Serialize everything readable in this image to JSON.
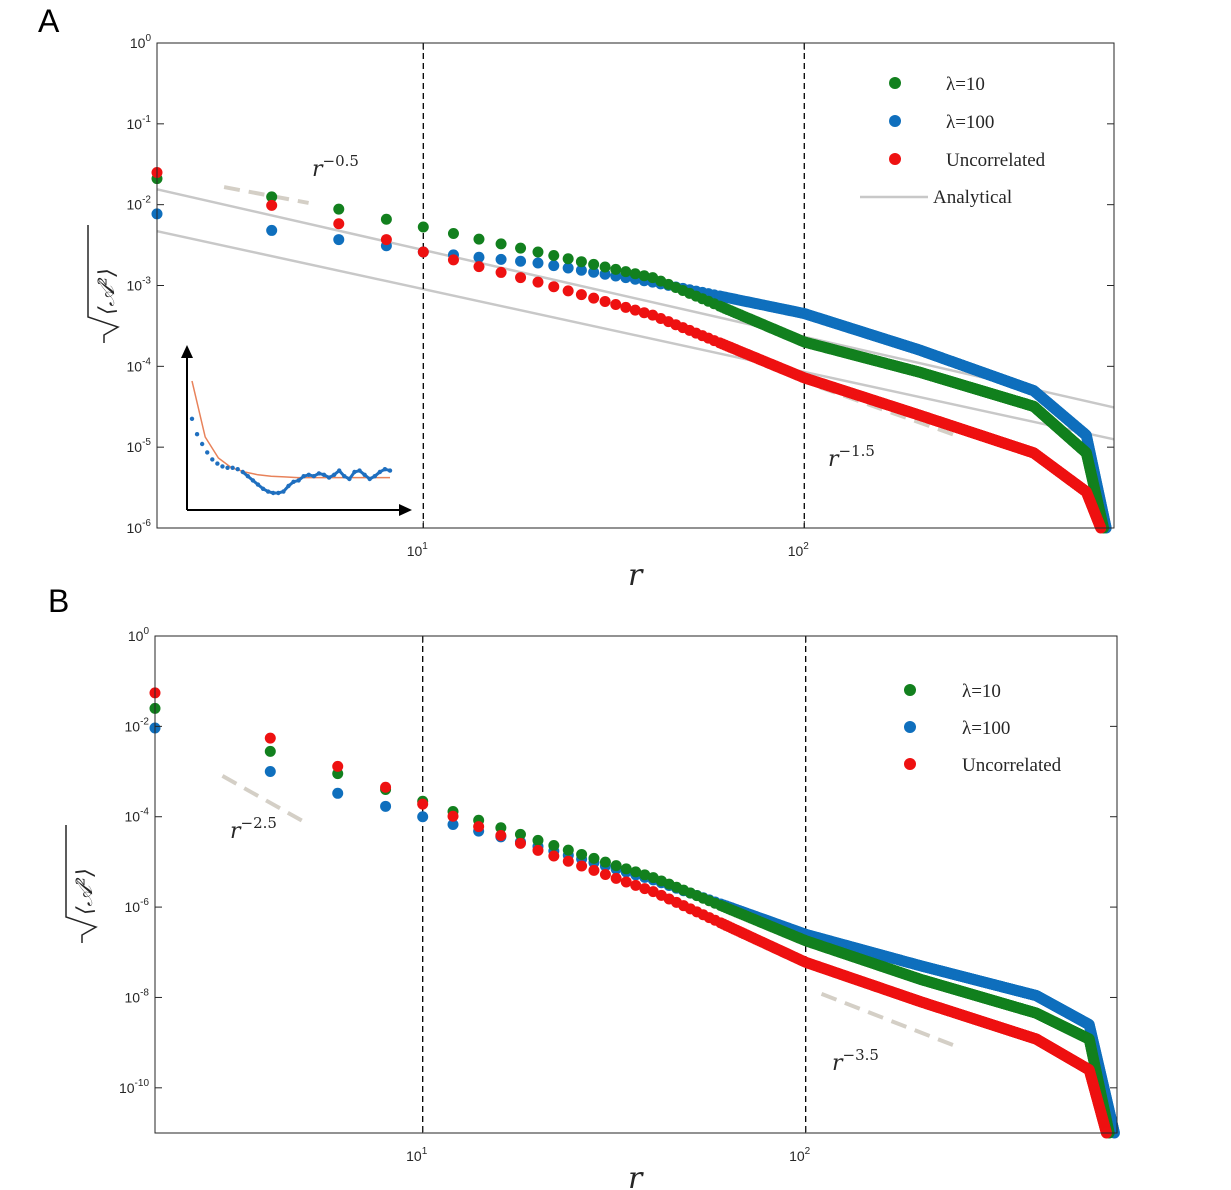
{
  "colors": {
    "lambda10": "#12801e",
    "lambda100": "#0f6fbd",
    "uncorrelated": "#ee1111",
    "analytical": "#c8c8c8",
    "slope_guide": "#d4cfc6",
    "inset_data": "#1f6fbf",
    "inset_fit": "#e8825a"
  },
  "chart_data": [
    {
      "panel": "A",
      "type": "scatter",
      "xscale": "log",
      "yscale": "log",
      "xlim": [
        2,
        650
      ],
      "ylim": [
        1e-06,
        1
      ],
      "xlabel": "r",
      "ylabel": "sqrt(<A^2>)",
      "xticks": [
        {
          "base": "10",
          "exp": "1",
          "value": 10
        },
        {
          "base": "10",
          "exp": "2",
          "value": 100
        }
      ],
      "yticks": [
        {
          "base": "10",
          "exp": "0",
          "value": 1
        },
        {
          "base": "10",
          "exp": "-1",
          "value": 0.1
        },
        {
          "base": "10",
          "exp": "-2",
          "value": 0.01
        },
        {
          "base": "10",
          "exp": "-3",
          "value": 0.001
        },
        {
          "base": "10",
          "exp": "-4",
          "value": 0.0001
        },
        {
          "base": "10",
          "exp": "-5",
          "value": 1e-05
        },
        {
          "base": "10",
          "exp": "-6",
          "value": 1e-06
        }
      ],
      "vlines": [
        10,
        100
      ],
      "legend_position": "top-right",
      "series": [
        {
          "name": "λ=10",
          "color_key": "lambda10",
          "anchors": [
            [
              2,
              0.021
            ],
            [
              4,
              0.0125
            ],
            [
              6,
              0.0088
            ],
            [
              8,
              0.0066
            ],
            [
              10,
              0.0053
            ],
            [
              20,
              0.0026
            ],
            [
              40,
              0.00125
            ],
            [
              100,
              0.0002
            ],
            [
              200,
              8.5e-05
            ],
            [
              400,
              3.2e-05
            ],
            [
              550,
              8.5e-06
            ],
            [
              610,
              1e-06
            ]
          ]
        },
        {
          "name": "λ=100",
          "color_key": "lambda100",
          "anchors": [
            [
              2,
              0.0077
            ],
            [
              4,
              0.0048
            ],
            [
              6,
              0.0037
            ],
            [
              8,
              0.0031
            ],
            [
              10,
              0.0026
            ],
            [
              20,
              0.0019
            ],
            [
              40,
              0.0011
            ],
            [
              100,
              0.00045
            ],
            [
              200,
              0.00016
            ],
            [
              400,
              5e-05
            ],
            [
              550,
              1.4e-05
            ],
            [
              620,
              1e-06
            ]
          ]
        },
        {
          "name": "Uncorrelated",
          "color_key": "uncorrelated",
          "anchors": [
            [
              2,
              0.025
            ],
            [
              4,
              0.0098
            ],
            [
              6,
              0.0058
            ],
            [
              8,
              0.0037
            ],
            [
              10,
              0.0026
            ],
            [
              20,
              0.0011
            ],
            [
              40,
              0.00043
            ],
            [
              100,
              7.2e-05
            ],
            [
              200,
              2.5e-05
            ],
            [
              400,
              8.5e-06
            ],
            [
              550,
              2.8e-06
            ],
            [
              600,
              1e-06
            ]
          ]
        },
        {
          "name": "Analytical",
          "color_key": "analytical",
          "style": "line",
          "lines": [
            [
              [
                2,
                0.0155
              ],
              [
                650,
                3.1e-05
              ]
            ],
            [
              [
                2,
                0.0047
              ],
              [
                650,
                1.25e-05
              ]
            ]
          ]
        }
      ],
      "slope_labels": [
        {
          "base": "r",
          "exp": "−0.5",
          "guide": [
            [
              3,
              0.0165
            ],
            [
              5,
              0.0105
            ]
          ]
        },
        {
          "base": "r",
          "exp": "−1.5",
          "guide": [
            [
              110,
              5.5e-05
            ],
            [
              250,
              1.4e-05
            ]
          ]
        }
      ],
      "inset": {
        "data": [
          0.58,
          0.47,
          0.4,
          0.34,
          0.29,
          0.26,
          0.24,
          0.23,
          0.23,
          0.22,
          0.2,
          0.17,
          0.14,
          0.11,
          0.08,
          0.06,
          0.05,
          0.05,
          0.06,
          0.1,
          0.13,
          0.14,
          0.17,
          0.18,
          0.17,
          0.19,
          0.18,
          0.16,
          0.18,
          0.21,
          0.17,
          0.15,
          0.2,
          0.21,
          0.18,
          0.15,
          0.17,
          0.2,
          0.22,
          0.21
        ],
        "fit": [
          0.85,
          0.45,
          0.3,
          0.23,
          0.2,
          0.18,
          0.17,
          0.165,
          0.16,
          0.16,
          0.16,
          0.16,
          0.16,
          0.16,
          0.16,
          0.16
        ]
      }
    },
    {
      "panel": "B",
      "type": "scatter",
      "xscale": "log",
      "yscale": "log",
      "xlim": [
        2,
        650
      ],
      "ylim": [
        1e-11,
        1
      ],
      "xlabel": "r",
      "ylabel": "sqrt(<A^2>)",
      "xticks": [
        {
          "base": "10",
          "exp": "1",
          "value": 10
        },
        {
          "base": "10",
          "exp": "2",
          "value": 100
        }
      ],
      "yticks": [
        {
          "base": "10",
          "exp": "0",
          "value": 1
        },
        {
          "base": "10",
          "exp": "-2",
          "value": 0.01
        },
        {
          "base": "10",
          "exp": "-4",
          "value": 0.0001
        },
        {
          "base": "10",
          "exp": "-6",
          "value": 1e-06
        },
        {
          "base": "10",
          "exp": "-8",
          "value": 1e-08
        },
        {
          "base": "10",
          "exp": "-10",
          "value": 1e-10
        }
      ],
      "vlines": [
        10,
        100
      ],
      "legend_position": "top-right",
      "series": [
        {
          "name": "λ=10",
          "color_key": "lambda10",
          "anchors": [
            [
              2,
              0.025
            ],
            [
              4,
              0.0028
            ],
            [
              6,
              0.0009
            ],
            [
              8,
              0.0004
            ],
            [
              10,
              0.00022
            ],
            [
              20,
              3e-05
            ],
            [
              40,
              4.5e-06
            ],
            [
              100,
              1.8e-07
            ],
            [
              200,
              2.5e-08
            ],
            [
              400,
              4.5e-09
            ],
            [
              550,
              1.2e-09
            ],
            [
              620,
              1e-11
            ]
          ]
        },
        {
          "name": "λ=100",
          "color_key": "lambda100",
          "anchors": [
            [
              2,
              0.0092
            ],
            [
              4,
              0.001
            ],
            [
              6,
              0.00033
            ],
            [
              8,
              0.00017
            ],
            [
              10,
              0.0001
            ],
            [
              20,
              2.2e-05
            ],
            [
              40,
              4e-06
            ],
            [
              100,
              2.5e-07
            ],
            [
              200,
              5e-08
            ],
            [
              400,
              1.1e-08
            ],
            [
              550,
              2.5e-09
            ],
            [
              640,
              1e-11
            ]
          ]
        },
        {
          "name": "Uncorrelated",
          "color_key": "uncorrelated",
          "anchors": [
            [
              2,
              0.055
            ],
            [
              4,
              0.0055
            ],
            [
              6,
              0.0013
            ],
            [
              8,
              0.00045
            ],
            [
              10,
              0.00019
            ],
            [
              20,
              1.8e-05
            ],
            [
              40,
              2.2e-06
            ],
            [
              100,
              6e-08
            ],
            [
              200,
              8e-09
            ],
            [
              400,
              1.2e-09
            ],
            [
              550,
              2.5e-10
            ],
            [
              610,
              1e-11
            ]
          ]
        }
      ],
      "slope_labels": [
        {
          "base": "r",
          "exp": "−2.5",
          "guide": [
            [
              3,
              0.0008
            ],
            [
              5,
              7e-05
            ]
          ]
        },
        {
          "base": "r",
          "exp": "−3.5",
          "guide": [
            [
              110,
              1.2e-08
            ],
            [
              250,
              8e-10
            ]
          ]
        }
      ]
    }
  ],
  "labels": {
    "panel_a": "A",
    "panel_b": "B",
    "legend": [
      "λ=10",
      "λ=100",
      "Uncorrelated",
      "Analytical"
    ]
  }
}
